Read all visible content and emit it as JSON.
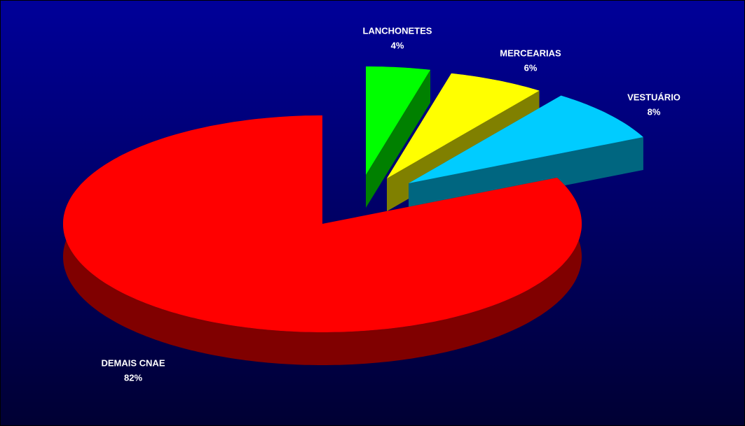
{
  "chart_data": {
    "type": "pie",
    "categories": [
      "LANCHONETES",
      "MERCEARIAS",
      "VESTUÁRIO",
      "DEMAIS CNAE"
    ],
    "values": [
      4,
      6,
      8,
      82
    ],
    "value_labels": [
      "4%",
      "6%",
      "8%",
      "82%"
    ],
    "colors": [
      "#00ff00",
      "#ffff00",
      "#00ccff",
      "#ff0000"
    ]
  }
}
